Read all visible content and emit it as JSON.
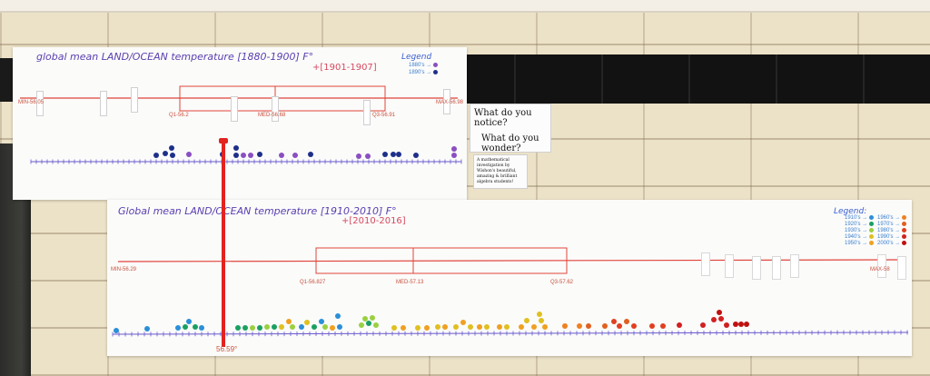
{
  "poster_top": {
    "title": "global mean LAND/OCEAN temperature [1880-1900] F°",
    "subtitle": "+[1901-1907]",
    "legend_title": "Legend",
    "legend_rows": [
      {
        "label": "1880's →",
        "color": "#8a4fc0"
      },
      {
        "label": "1890's →",
        "color": "#1e2f8a"
      }
    ],
    "labels": {
      "min": "MIN-56.05",
      "q1": "Q1-56.2",
      "med": "MED-56.68",
      "q3": "Q3-56.91",
      "max": "MAX-56.98"
    }
  },
  "poster_bottom": {
    "title": "Global mean LAND/OCEAN temperature [1910-2010] F°",
    "subtitle": "+[2010-2016]",
    "legend_title": "Legend:",
    "legend_left": [
      {
        "label": "1910's →",
        "color": "#2a8fd8"
      },
      {
        "label": "1920's →",
        "color": "#1aa060"
      },
      {
        "label": "1930's →",
        "color": "#9ad040"
      },
      {
        "label": "1940's →",
        "color": "#e0c020"
      },
      {
        "label": "1950's →",
        "color": "#f0a020"
      }
    ],
    "legend_right": [
      {
        "label": "1960's →",
        "color": "#f08020"
      },
      {
        "label": "1970's →",
        "color": "#e06020"
      },
      {
        "label": "1980's →",
        "color": "#e04020"
      },
      {
        "label": "1990's →",
        "color": "#d02020"
      },
      {
        "label": "2000's →",
        "color": "#c01010"
      }
    ],
    "labels": {
      "min": "MIN-56.29",
      "q1": "Q1-56.827",
      "med": "MED-57.13",
      "q3": "Q3-57.62",
      "max": "MAX-58"
    }
  },
  "cards": {
    "notice": "What do you notice?",
    "wonder": "What do you wonder?",
    "blurb": "A mathematical investigation by Wishon's beautiful, amazing & brilliant algebra students!"
  },
  "pole_label": "56.59°"
}
